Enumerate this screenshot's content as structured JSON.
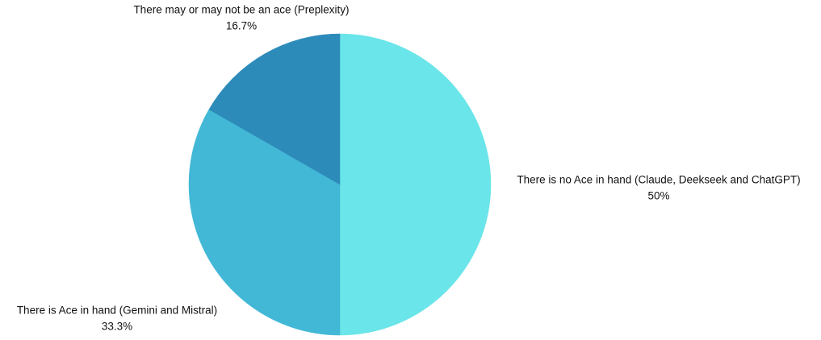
{
  "chart_data": {
    "type": "pie",
    "title": "",
    "slices": [
      {
        "label": "There is no Ace in hand (Claude, Deekseek and ChatGPT)",
        "value": 50,
        "value_label": "50%",
        "color": "#6ae5e9"
      },
      {
        "label": "There is Ace in hand (Gemini and Mistral)",
        "value": 33.3,
        "value_label": "33.3%",
        "color": "#42b8d6"
      },
      {
        "label": "There may or may not be an ace (Preplexity)",
        "value": 16.7,
        "value_label": "16.7%",
        "color": "#2d8bba"
      }
    ],
    "start_angle": "12 o'clock",
    "direction": "clockwise"
  }
}
